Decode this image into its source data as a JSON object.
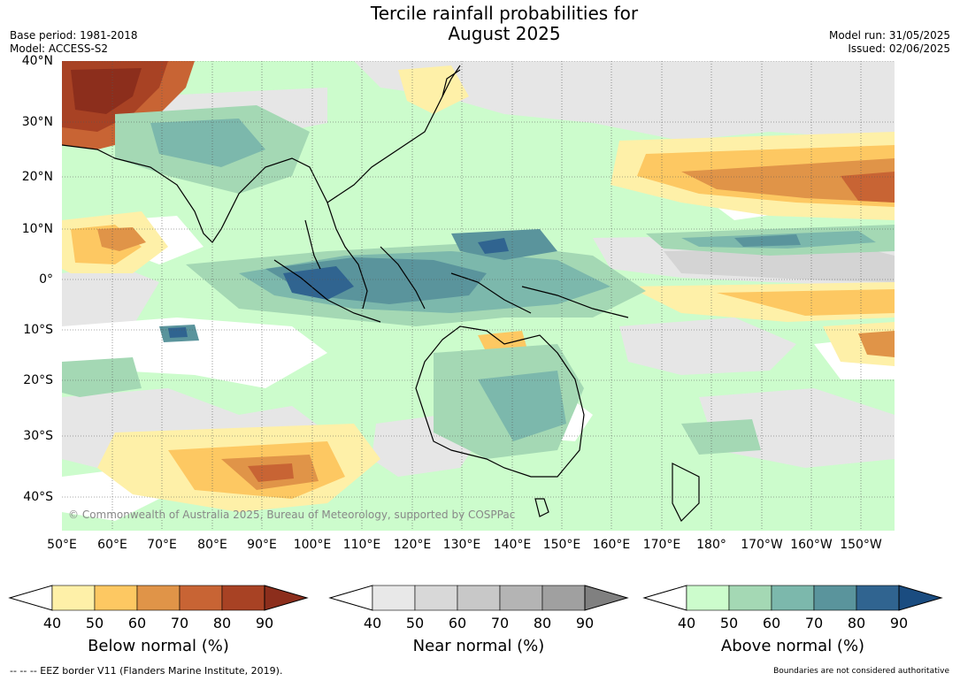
{
  "title_line1": "Tercile rainfall probabilities for",
  "title_line2": "August 2025",
  "base_period": "Base period: 1981-2018",
  "model": "Model: ACCESS-S2",
  "model_run": "Model run: 31/05/2025",
  "issued": "Issued: 02/06/2025",
  "copyright": "© Commonwealth of Australia 2025, Bureau of Meteorology, supported by COSPPac",
  "lat_labels": [
    "40°N",
    "30°N",
    "20°N",
    "10°N",
    "0°",
    "10°S",
    "20°S",
    "30°S",
    "40°S"
  ],
  "lon_labels": [
    "50°E",
    "60°E",
    "70°E",
    "80°E",
    "90°E",
    "100°E",
    "110°E",
    "120°E",
    "130°E",
    "140°E",
    "150°E",
    "160°E",
    "170°E",
    "180°",
    "170°W",
    "160°W",
    "150°W"
  ],
  "colorbars": [
    {
      "title": "Below normal (%)",
      "ticks": [
        "40",
        "50",
        "60",
        "70",
        "80",
        "90"
      ],
      "colors": [
        "#fef0a8",
        "#fdc862",
        "#e09448",
        "#c86434",
        "#a84224"
      ],
      "extend_color": "#8c2e1c"
    },
    {
      "title": "Near normal (%)",
      "ticks": [
        "40",
        "50",
        "60",
        "70",
        "80",
        "90"
      ],
      "colors": [
        "#e8e8e8",
        "#d8d8d8",
        "#c8c8c8",
        "#b4b4b4",
        "#a0a0a0"
      ],
      "extend_color": "#808080"
    },
    {
      "title": "Above normal (%)",
      "ticks": [
        "40",
        "50",
        "60",
        "70",
        "80",
        "90"
      ],
      "colors": [
        "#ccfccc",
        "#a4d8b4",
        "#7cb8ac",
        "#5a949c",
        "#306490"
      ],
      "extend_color": "#1a4c80"
    }
  ],
  "footer_left": "--  --  -- EEZ border V11 (Flanders Marine Institute, 2019).",
  "footer_right": "Boundaries are not considered authoritative"
}
